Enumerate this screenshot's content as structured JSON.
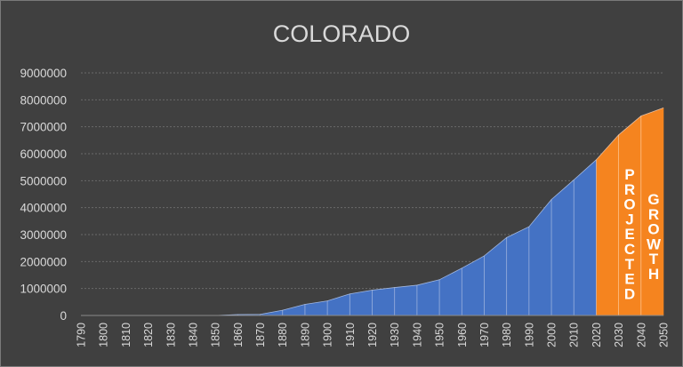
{
  "chart_data": {
    "type": "area",
    "title": "COLORADO",
    "xlabel": "",
    "ylabel": "",
    "x": [
      1790,
      1800,
      1810,
      1820,
      1830,
      1840,
      1850,
      1860,
      1870,
      1880,
      1890,
      1900,
      1910,
      1920,
      1930,
      1940,
      1950,
      1960,
      1970,
      1980,
      1990,
      2000,
      2010,
      2020,
      2030,
      2040,
      2050
    ],
    "values": [
      0,
      0,
      0,
      0,
      0,
      0,
      0,
      34000,
      40000,
      194000,
      413000,
      540000,
      799000,
      940000,
      1036000,
      1123000,
      1325000,
      1754000,
      2210000,
      2890000,
      3294000,
      4302000,
      5029000,
      5774000,
      6700000,
      7400000,
      7700000
    ],
    "ylim": [
      0,
      9000000
    ],
    "yticks": [
      0,
      1000000,
      2000000,
      3000000,
      4000000,
      5000000,
      6000000,
      7000000,
      8000000,
      9000000
    ],
    "grid": true,
    "projection_start": 2020,
    "colors": {
      "actual": "#4472c4",
      "projected": "#f5841f",
      "background": "#404040"
    },
    "annotations": [
      "PROJECTED",
      "GROWTH"
    ]
  }
}
